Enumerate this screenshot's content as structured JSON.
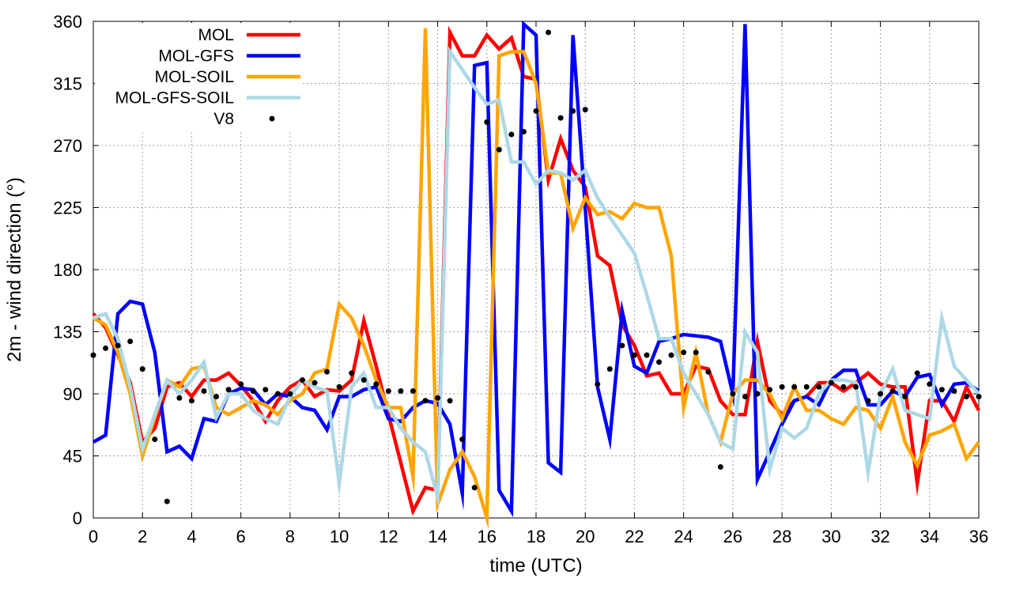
{
  "chart_data": {
    "type": "line",
    "xlabel": "time (UTC)",
    "ylabel": "2m - wind direction (°)",
    "xlim": [
      0,
      36
    ],
    "ylim": [
      0,
      360
    ],
    "xticks": [
      0,
      2,
      4,
      6,
      8,
      10,
      12,
      14,
      16,
      18,
      20,
      22,
      24,
      26,
      28,
      30,
      32,
      34,
      36
    ],
    "yticks": [
      0,
      45,
      90,
      135,
      180,
      225,
      270,
      315,
      360
    ],
    "grid": true,
    "legend_position": "top-left",
    "series": [
      {
        "name": "MOL",
        "color": "#ff0000",
        "style": "line",
        "x": [
          0,
          0.5,
          1,
          1.5,
          2,
          2.5,
          3,
          3.5,
          4,
          4.5,
          5,
          5.5,
          6,
          6.5,
          7,
          7.5,
          8,
          8.5,
          9,
          9.5,
          10,
          10.5,
          11,
          11.5,
          12,
          12.5,
          13,
          13.5,
          14,
          14.5,
          15,
          15.5,
          16,
          16.5,
          17,
          17.5,
          18,
          18.5,
          19,
          19.5,
          20,
          20.5,
          21,
          21.5,
          22,
          22.5,
          23,
          23.5,
          24,
          24.5,
          25,
          25.5,
          26,
          26.5,
          27,
          27.5,
          28,
          28.5,
          29,
          29.5,
          30,
          30.5,
          31,
          31.5,
          32,
          32.5,
          33,
          33.5,
          34,
          34.5,
          35,
          35.5,
          36
        ],
        "values": [
          148,
          138,
          118,
          98,
          55,
          65,
          95,
          98,
          88,
          100,
          100,
          105,
          96,
          85,
          70,
          85,
          95,
          100,
          88,
          93,
          92,
          100,
          143,
          110,
          75,
          40,
          5,
          22,
          20,
          352,
          335,
          335,
          350,
          340,
          348,
          320,
          318,
          245,
          275,
          252,
          240,
          190,
          183,
          140,
          125,
          103,
          105,
          90,
          90,
          110,
          108,
          85,
          75,
          75,
          128,
          85,
          75,
          85,
          88,
          98,
          98,
          92,
          98,
          105,
          97,
          95,
          95,
          25,
          85,
          85,
          70,
          95,
          78
        ]
      },
      {
        "name": "MOL-GFS",
        "color": "#0000ff",
        "style": "line",
        "x": [
          0,
          0.5,
          1,
          1.5,
          2,
          2.5,
          3,
          3.5,
          4,
          4.5,
          5,
          5.5,
          6,
          6.5,
          7,
          7.5,
          8,
          8.5,
          9,
          9.5,
          10,
          10.5,
          11,
          11.5,
          12,
          12.5,
          13,
          13.5,
          14,
          14.5,
          15,
          15.5,
          16,
          16.5,
          17,
          17.5,
          18,
          18.5,
          19,
          19.5,
          20,
          20.5,
          21,
          21.5,
          22,
          22.5,
          23,
          23.5,
          24,
          24.5,
          25,
          25.5,
          26,
          26.5,
          27,
          27.5,
          28,
          28.5,
          29,
          29.5,
          30,
          30.5,
          31,
          31.5,
          32,
          32.5,
          33,
          33.5,
          34,
          34.5,
          35,
          35.5,
          36
        ],
        "values": [
          55,
          60,
          148,
          157,
          155,
          120,
          48,
          52,
          43,
          72,
          70,
          90,
          94,
          93,
          82,
          90,
          88,
          80,
          78,
          64,
          88,
          88,
          93,
          95,
          72,
          70,
          80,
          85,
          83,
          68,
          18,
          328,
          330,
          20,
          5,
          358,
          350,
          40,
          33,
          350,
          225,
          95,
          57,
          150,
          110,
          105,
          128,
          130,
          133,
          132,
          131,
          128,
          90,
          358,
          28,
          48,
          68,
          85,
          88,
          82,
          100,
          107,
          107,
          82,
          82,
          92,
          88,
          102,
          104,
          82,
          97,
          98,
          92
        ]
      },
      {
        "name": "MOL-SOIL",
        "color": "#ffa500",
        "style": "line",
        "x": [
          0,
          0.5,
          1,
          1.5,
          2,
          2.5,
          3,
          3.5,
          4,
          4.5,
          5,
          5.5,
          6,
          6.5,
          7,
          7.5,
          8,
          8.5,
          9,
          9.5,
          10,
          10.5,
          11,
          11.5,
          12,
          12.5,
          13,
          13.5,
          14,
          14.5,
          15,
          15.5,
          16,
          16.5,
          17,
          17.5,
          18,
          18.5,
          19,
          19.5,
          20,
          20.5,
          21,
          21.5,
          22,
          22.5,
          23,
          23.5,
          24,
          24.5,
          25,
          25.5,
          26,
          26.5,
          27,
          27.5,
          28,
          28.5,
          29,
          29.5,
          30,
          30.5,
          31,
          31.5,
          32,
          32.5,
          33,
          33.5,
          34,
          34.5,
          35,
          35.5,
          36
        ],
        "values": [
          145,
          140,
          120,
          90,
          45,
          73,
          100,
          95,
          108,
          110,
          80,
          75,
          80,
          85,
          82,
          75,
          85,
          90,
          105,
          108,
          155,
          145,
          125,
          100,
          80,
          80,
          30,
          355,
          10,
          35,
          48,
          30,
          0,
          335,
          338,
          338,
          315,
          250,
          250,
          210,
          232,
          220,
          222,
          217,
          228,
          225,
          225,
          190,
          80,
          120,
          75,
          55,
          90,
          100,
          100,
          90,
          72,
          95,
          78,
          78,
          72,
          68,
          80,
          78,
          65,
          88,
          55,
          38,
          60,
          63,
          68,
          43,
          55
        ]
      },
      {
        "name": "MOL-GFS-SOIL",
        "color": "#add8e6",
        "style": "line",
        "x": [
          0,
          0.5,
          1,
          1.5,
          2,
          2.5,
          3,
          3.5,
          4,
          4.5,
          5,
          5.5,
          6,
          6.5,
          7,
          7.5,
          8,
          8.5,
          9,
          9.5,
          10,
          10.5,
          11,
          11.5,
          12,
          12.5,
          13,
          13.5,
          14,
          14.5,
          15,
          15.5,
          16,
          16.5,
          17,
          17.5,
          18,
          18.5,
          19,
          19.5,
          20,
          20.5,
          21,
          21.5,
          22,
          22.5,
          23,
          23.5,
          24,
          24.5,
          25,
          25.5,
          26,
          26.5,
          27,
          27.5,
          28,
          28.5,
          29,
          29.5,
          30,
          30.5,
          31,
          31.5,
          32,
          32.5,
          33,
          33.5,
          34,
          34.5,
          35,
          35.5,
          36
        ],
        "values": [
          145,
          148,
          130,
          95,
          50,
          75,
          100,
          90,
          100,
          113,
          73,
          90,
          90,
          78,
          72,
          68,
          88,
          100,
          95,
          92,
          25,
          95,
          105,
          80,
          80,
          65,
          55,
          48,
          15,
          338,
          325,
          312,
          300,
          303,
          258,
          258,
          242,
          252,
          250,
          245,
          252,
          232,
          218,
          205,
          192,
          162,
          130,
          130,
          105,
          90,
          75,
          55,
          50,
          135,
          120,
          35,
          65,
          58,
          65,
          90,
          100,
          100,
          98,
          33,
          90,
          108,
          78,
          75,
          72,
          145,
          110,
          100,
          90
        ]
      },
      {
        "name": "V8",
        "color": "#000000",
        "style": "points",
        "x": [
          0,
          0.5,
          1,
          1.5,
          2,
          2.5,
          3,
          3.5,
          4,
          4.5,
          5,
          5.5,
          6,
          6.5,
          7,
          7.5,
          8,
          8.5,
          9,
          9.5,
          10,
          10.5,
          11,
          11.5,
          12,
          12.5,
          13,
          13.5,
          14,
          14.5,
          15,
          15.5,
          16,
          16.5,
          17,
          17.5,
          18,
          18.5,
          19,
          19.5,
          20,
          20.5,
          21,
          21.5,
          22,
          22.5,
          23,
          23.5,
          24,
          24.5,
          25,
          25.5,
          26,
          26.5,
          27,
          27.5,
          28,
          28.5,
          29,
          29.5,
          30,
          30.5,
          31,
          31.5,
          32,
          32.5,
          33,
          33.5,
          34,
          34.5,
          35,
          35.5,
          36
        ],
        "values": [
          118,
          123,
          125,
          128,
          108,
          57,
          12,
          87,
          85,
          92,
          88,
          93,
          97,
          92,
          93,
          90,
          90,
          100,
          98,
          106,
          95,
          105,
          100,
          97,
          92,
          92,
          92,
          85,
          87,
          85,
          57,
          22,
          287,
          267,
          278,
          280,
          295,
          352,
          290,
          295,
          296,
          97,
          108,
          125,
          118,
          118,
          113,
          118,
          120,
          120,
          106,
          37,
          90,
          88,
          90,
          93,
          95,
          95,
          95,
          95,
          98,
          95,
          95,
          85,
          90,
          92,
          88,
          105,
          97,
          93,
          92,
          88,
          88
        ]
      }
    ]
  }
}
